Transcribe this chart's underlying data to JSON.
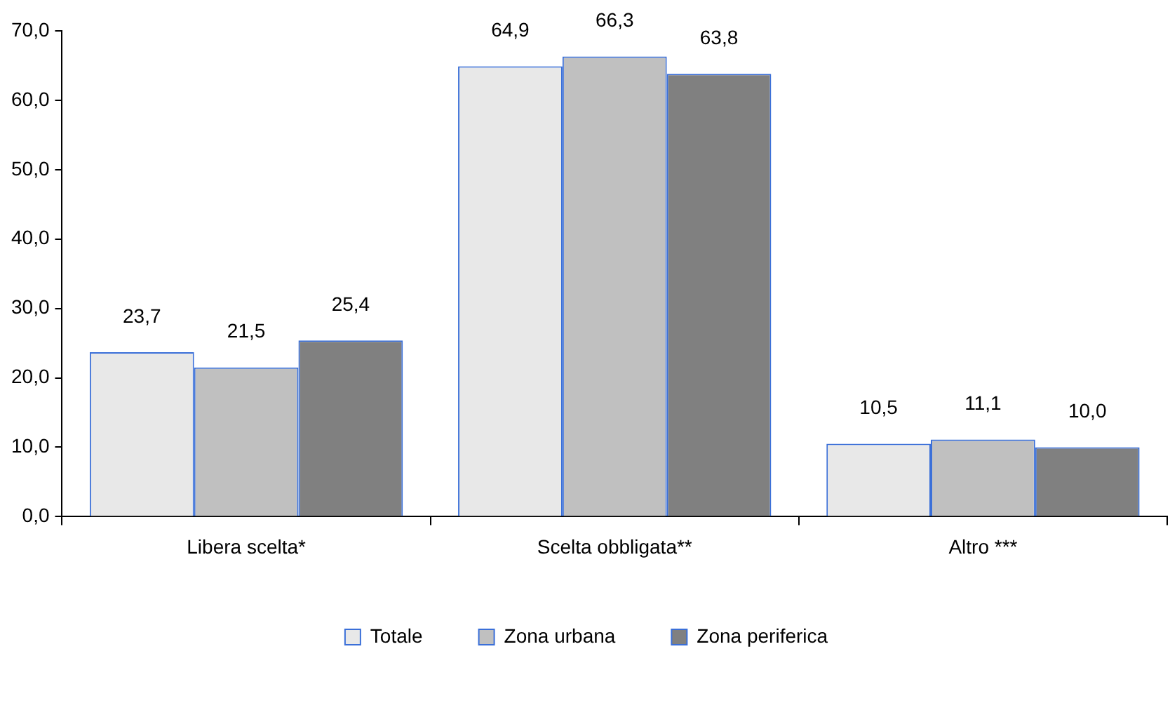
{
  "chart_data": {
    "type": "bar",
    "categories": [
      "Libera scelta*",
      "Scelta obbligata**",
      "Altro ***"
    ],
    "series": [
      {
        "name": "Totale",
        "color": "#e8e8e8",
        "values": [
          23.7,
          64.9,
          10.5
        ],
        "value_labels": [
          "23,7",
          "64,9",
          "10,5"
        ]
      },
      {
        "name": "Zona urbana",
        "color": "#c0c0c0",
        "values": [
          21.5,
          66.3,
          11.1
        ],
        "value_labels": [
          "21,5",
          "66,3",
          "11,1"
        ]
      },
      {
        "name": "Zona periferica",
        "color": "#808080",
        "values": [
          25.4,
          63.8,
          10.0
        ],
        "value_labels": [
          "25,4",
          "63,8",
          "10,0"
        ]
      }
    ],
    "ylim": [
      0,
      70
    ],
    "yticks": [
      {
        "value": 0,
        "label": "0,0"
      },
      {
        "value": 10,
        "label": "10,0"
      },
      {
        "value": 20,
        "label": "20,0"
      },
      {
        "value": 30,
        "label": "30,0"
      },
      {
        "value": 40,
        "label": "40,0"
      },
      {
        "value": 50,
        "label": "50,0"
      },
      {
        "value": 60,
        "label": "60,0"
      },
      {
        "value": 70,
        "label": "70,0"
      }
    ],
    "grid": false,
    "legend": "bottom"
  }
}
